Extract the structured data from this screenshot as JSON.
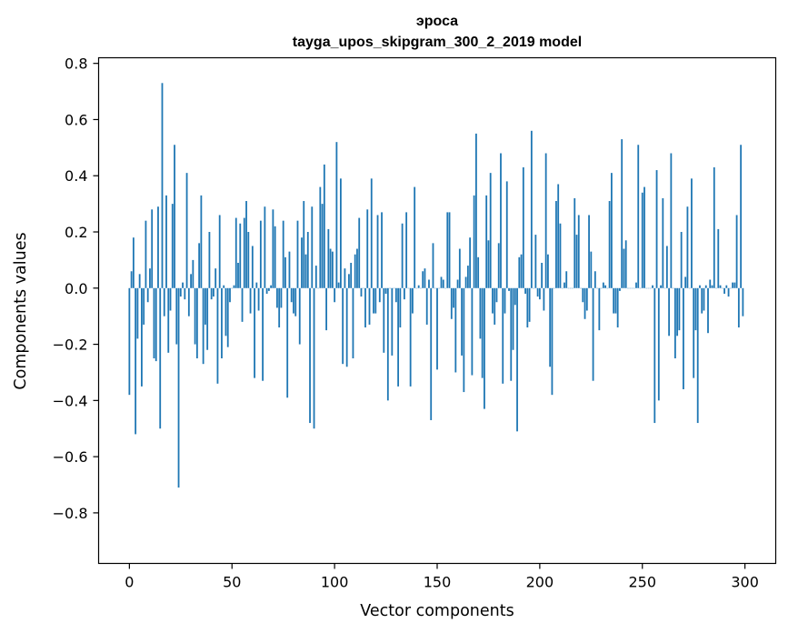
{
  "chart_data": {
    "type": "bar",
    "title": "эроса",
    "subtitle": "tayga_upos_skipgram_300_2_2019 model",
    "xlabel": "Vector components",
    "ylabel": "Components values",
    "xlim": [
      -15,
      315
    ],
    "ylim": [
      -0.98,
      0.82
    ],
    "xticks": [
      0,
      50,
      100,
      150,
      200,
      250,
      300
    ],
    "yticks": [
      -0.8,
      -0.6,
      -0.4,
      -0.2,
      0.0,
      0.2,
      0.4,
      0.6,
      0.8
    ],
    "ytick_labels": [
      "−0.8",
      "−0.6",
      "−0.4",
      "−0.2",
      "0.0",
      "0.2",
      "0.4",
      "0.6",
      "0.8"
    ],
    "xtick_labels": [
      "0",
      "50",
      "100",
      "150",
      "200",
      "250",
      "300"
    ],
    "bar_color": "#1f77b4",
    "grid": false,
    "values": [
      -0.38,
      0.06,
      0.18,
      -0.52,
      -0.18,
      0.05,
      -0.35,
      -0.13,
      0.24,
      -0.05,
      0.07,
      0.28,
      -0.25,
      -0.26,
      0.29,
      -0.5,
      0.73,
      -0.1,
      0.33,
      -0.23,
      -0.08,
      0.3,
      0.51,
      -0.2,
      -0.71,
      -0.03,
      0.02,
      -0.04,
      0.41,
      -0.1,
      0.05,
      0.1,
      -0.2,
      -0.25,
      0.16,
      0.33,
      -0.27,
      -0.13,
      -0.22,
      0.2,
      -0.04,
      -0.03,
      0.07,
      -0.34,
      0.26,
      -0.25,
      0.01,
      -0.17,
      -0.21,
      -0.05,
      0.0,
      0.01,
      0.25,
      0.09,
      0.23,
      -0.12,
      0.25,
      0.31,
      0.2,
      -0.09,
      0.15,
      -0.32,
      0.02,
      -0.08,
      0.24,
      -0.33,
      0.29,
      -0.02,
      -0.01,
      0.01,
      0.28,
      0.22,
      -0.07,
      -0.14,
      -0.07,
      0.24,
      0.11,
      -0.39,
      0.13,
      -0.05,
      -0.09,
      -0.1,
      0.24,
      -0.2,
      0.18,
      0.31,
      0.12,
      0.2,
      -0.48,
      0.29,
      -0.5,
      0.08,
      0.0,
      0.36,
      0.3,
      0.44,
      -0.15,
      0.21,
      0.14,
      0.13,
      -0.05,
      0.52,
      0.02,
      0.39,
      -0.27,
      0.07,
      -0.28,
      0.05,
      0.09,
      -0.25,
      0.12,
      0.14,
      0.25,
      -0.03,
      0.0,
      -0.14,
      0.28,
      -0.13,
      0.39,
      -0.09,
      -0.09,
      0.26,
      -0.05,
      0.27,
      -0.23,
      -0.02,
      -0.4,
      0.0,
      -0.24,
      0.0,
      -0.05,
      -0.35,
      -0.14,
      0.23,
      -0.04,
      0.27,
      0.0,
      -0.35,
      -0.09,
      0.36,
      0.0,
      0.01,
      0.0,
      0.06,
      0.07,
      -0.13,
      0.03,
      -0.47,
      0.16,
      0.0,
      -0.29,
      0.0,
      0.04,
      0.03,
      0.0,
      0.27,
      0.27,
      -0.11,
      -0.07,
      -0.3,
      0.03,
      0.14,
      -0.24,
      -0.37,
      0.04,
      0.08,
      0.18,
      -0.31,
      0.33,
      0.55,
      0.11,
      -0.18,
      -0.32,
      -0.43,
      0.33,
      0.17,
      0.41,
      -0.09,
      -0.13,
      -0.05,
      0.16,
      0.48,
      -0.34,
      -0.09,
      0.38,
      -0.01,
      -0.33,
      -0.22,
      -0.06,
      -0.51,
      0.11,
      0.12,
      0.43,
      -0.02,
      -0.14,
      -0.12,
      0.56,
      0.0,
      0.19,
      -0.03,
      -0.04,
      0.09,
      -0.08,
      0.48,
      0.12,
      -0.28,
      -0.38,
      0.0,
      0.31,
      0.37,
      0.23,
      0.0,
      0.02,
      0.06,
      0.0,
      0.0,
      0.0,
      0.32,
      0.19,
      0.26,
      0.0,
      -0.05,
      -0.11,
      -0.08,
      0.26,
      0.13,
      -0.33,
      0.06,
      0.0,
      -0.15,
      0.0,
      0.02,
      0.01,
      0.0,
      0.31,
      0.41,
      -0.09,
      -0.09,
      -0.14,
      -0.01,
      0.53,
      0.14,
      0.17,
      0.0,
      0.0,
      0.0,
      0.0,
      0.02,
      0.51,
      0.0,
      0.34,
      0.36,
      0.0,
      0.0,
      0.0,
      0.01,
      -0.48,
      0.42,
      -0.4,
      0.01,
      0.32,
      0.0,
      0.15,
      -0.17,
      0.48,
      0.0,
      -0.25,
      -0.17,
      -0.15,
      0.2,
      -0.36,
      0.04,
      0.29,
      0.0,
      0.39,
      -0.32,
      -0.15,
      -0.48,
      0.01,
      -0.09,
      -0.08,
      0.01,
      -0.16,
      0.03,
      0.01,
      0.43,
      0.0,
      0.21,
      0.01,
      0.0,
      -0.02,
      0.01,
      -0.03,
      0.0,
      0.02,
      0.02,
      0.26,
      -0.14,
      0.51,
      -0.1
    ]
  }
}
